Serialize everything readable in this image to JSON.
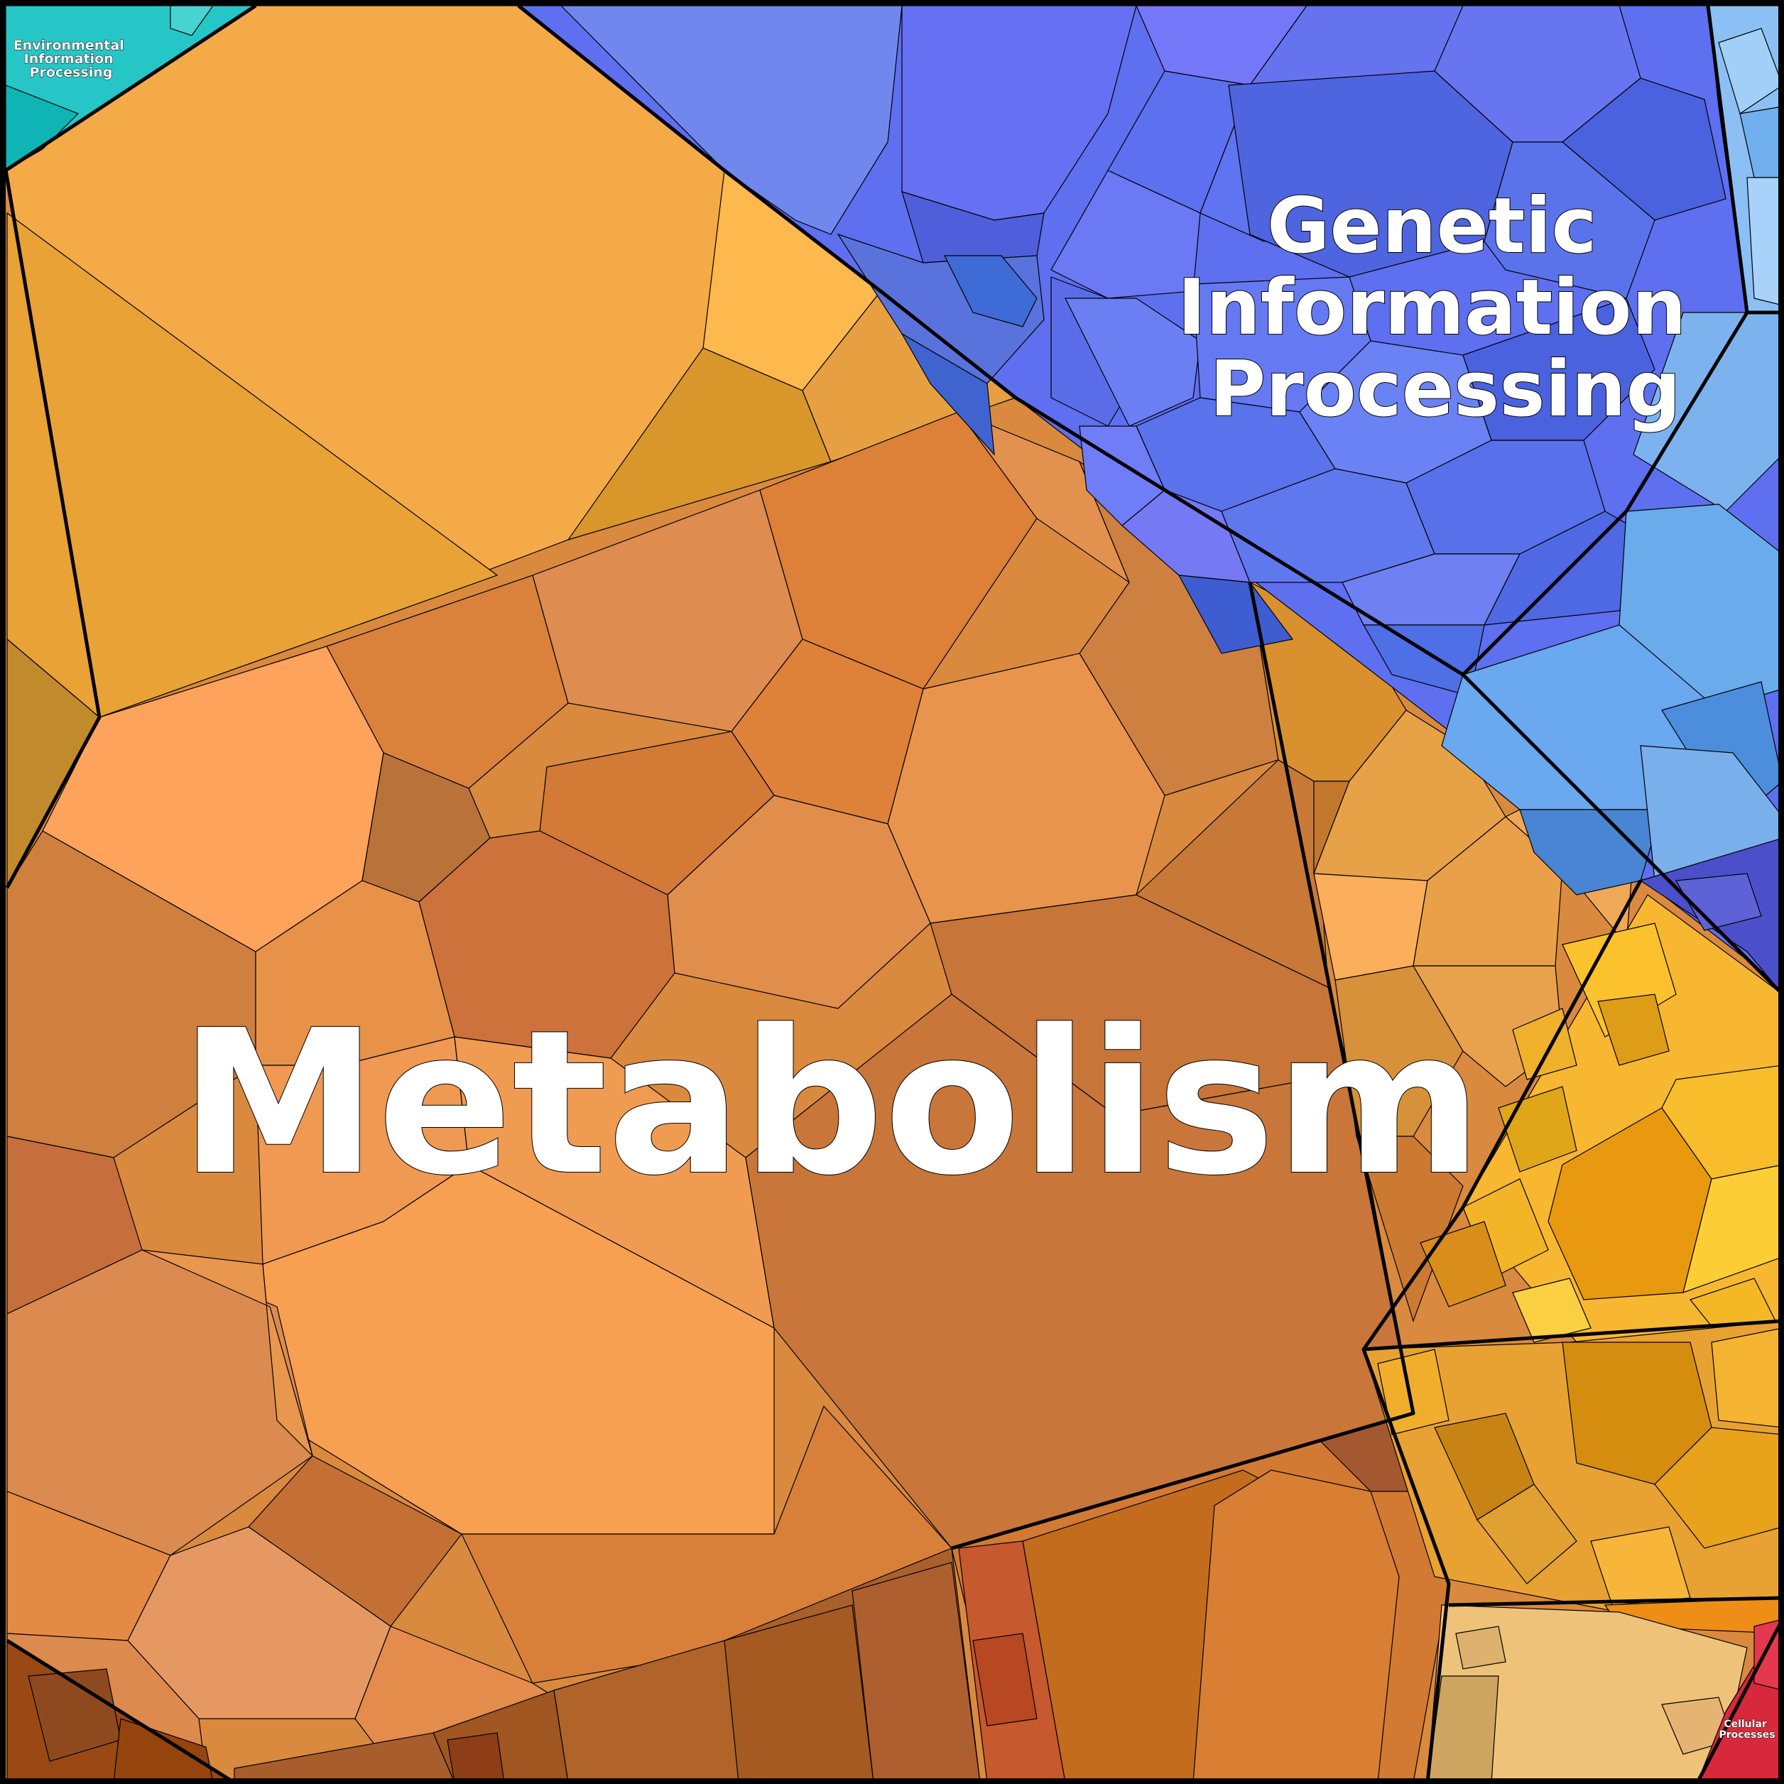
{
  "diagram": {
    "type": "voronoi-treemap",
    "categories": [
      {
        "id": "metabolism",
        "label_lines": [
          "Metabolism"
        ],
        "color_family": "orange",
        "base_color": "#F0A25A"
      },
      {
        "id": "genetic",
        "label_lines": [
          "Genetic",
          "Information",
          "Processing"
        ],
        "color_family": "blue",
        "base_color": "#5A6CF0"
      },
      {
        "id": "environmental",
        "label_lines": [
          "Environmental",
          "Information",
          "Processing"
        ],
        "color_family": "teal",
        "base_color": "#19C1C1"
      },
      {
        "id": "cellular",
        "label_lines": [
          "Cellular",
          "Processes"
        ],
        "color_family": "red",
        "base_color": "#D8283C"
      }
    ],
    "subregion_colors": {
      "upper_light_blue": "#6FA8E8",
      "lower_right_yellow": "#F2B632",
      "bottom_tan": "#EFC27A",
      "bottom_dark_orange": "#B45A22",
      "bottom_left_brown": "#9A4A14",
      "small_indigo": "#4E4FC8"
    }
  }
}
